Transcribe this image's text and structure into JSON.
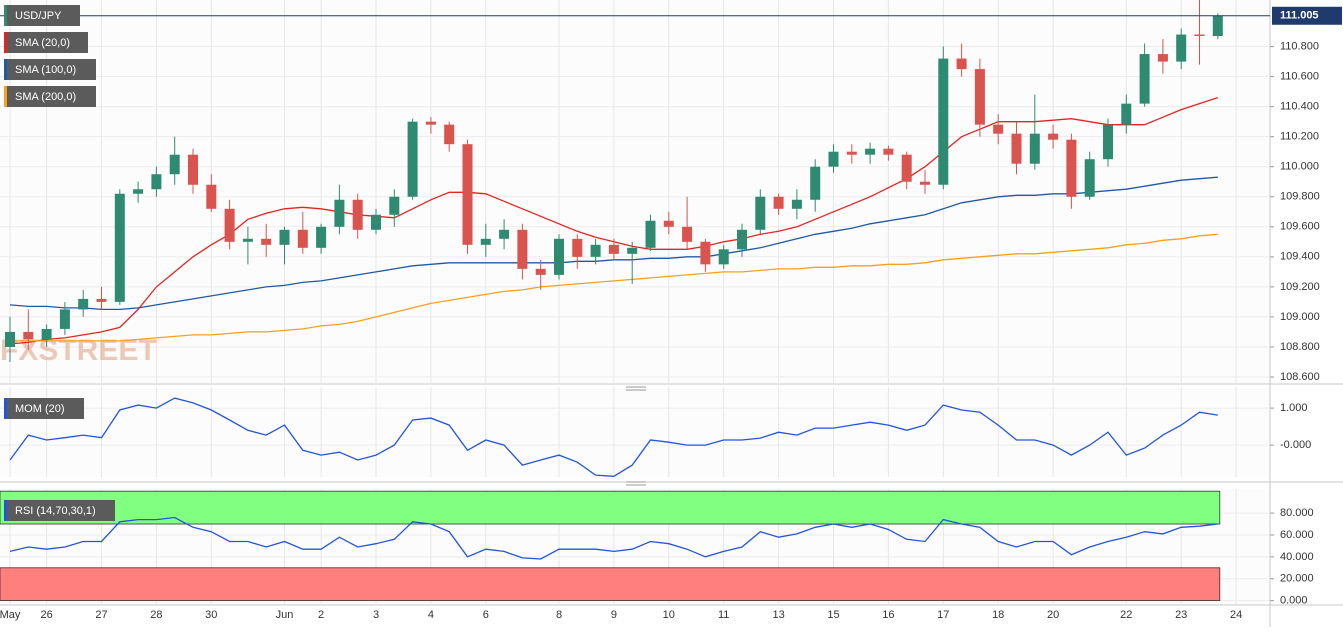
{
  "chart_data": [
    {
      "type": "candlestick",
      "name": "USD/JPY",
      "watermark": "FXSTREET",
      "last_price_label": "111.005",
      "up_color": "#2e8b72",
      "down_color": "#d9534f",
      "last_color": "#1f3b6e",
      "categories": [
        "May",
        null,
        "26",
        null,
        null,
        "27",
        null,
        null,
        "28",
        null,
        null,
        "30",
        null,
        null,
        null,
        "Jun",
        null,
        "2",
        null,
        null,
        "3",
        null,
        null,
        "4",
        null,
        null,
        "6",
        null,
        null,
        null,
        "8",
        null,
        null,
        "9",
        null,
        null,
        "10",
        null,
        null,
        "11",
        null,
        null,
        "13",
        null,
        null,
        "15",
        null,
        null,
        "16",
        null,
        null,
        "17",
        null,
        null,
        "18",
        null,
        null,
        "20",
        null,
        null,
        null,
        "22",
        null,
        null,
        "23",
        null,
        null,
        "24"
      ],
      "open": [
        108.8,
        108.9,
        108.85,
        108.92,
        109.05,
        109.12,
        109.1,
        109.82,
        109.85,
        109.95,
        110.08,
        109.88,
        109.72,
        109.5,
        109.52,
        109.48,
        109.58,
        109.46,
        109.6,
        109.78,
        109.58,
        109.68,
        109.8,
        110.3,
        110.28,
        110.15,
        109.48,
        109.52,
        109.58,
        109.32,
        109.28,
        109.52,
        109.4,
        109.48,
        109.42,
        109.46,
        109.64,
        109.6,
        109.5,
        109.35,
        109.45,
        109.58,
        109.8,
        109.72,
        109.78,
        110.0,
        110.1,
        110.08,
        110.12,
        110.08,
        109.9,
        109.88,
        110.72,
        110.65,
        110.28,
        110.22,
        110.02,
        110.22,
        110.18,
        109.8,
        110.05,
        110.28,
        110.42,
        110.75,
        110.7,
        110.88,
        110.87,
        null
      ],
      "high": [
        109.0,
        109.05,
        108.95,
        109.1,
        109.18,
        109.2,
        109.85,
        109.9,
        110.0,
        110.2,
        110.12,
        109.95,
        109.78,
        109.6,
        109.62,
        109.6,
        109.7,
        109.62,
        109.88,
        109.82,
        109.72,
        109.85,
        110.32,
        110.33,
        110.3,
        110.18,
        109.62,
        109.65,
        109.62,
        109.38,
        109.55,
        109.55,
        109.52,
        109.52,
        109.5,
        109.68,
        109.7,
        109.8,
        109.52,
        109.48,
        109.62,
        109.85,
        109.82,
        109.85,
        110.05,
        110.15,
        110.15,
        110.16,
        110.14,
        110.1,
        109.98,
        110.8,
        110.82,
        110.72,
        110.35,
        110.3,
        110.48,
        110.28,
        110.22,
        110.1,
        110.32,
        110.48,
        110.82,
        110.85,
        110.92,
        111.12,
        111.02,
        null
      ],
      "low": [
        108.7,
        108.78,
        108.8,
        108.88,
        109.0,
        109.05,
        109.08,
        109.76,
        109.8,
        109.88,
        109.82,
        109.7,
        109.45,
        109.35,
        109.4,
        109.35,
        109.42,
        109.42,
        109.55,
        109.52,
        109.55,
        109.6,
        109.78,
        110.22,
        110.1,
        109.42,
        109.4,
        109.45,
        109.25,
        109.18,
        109.25,
        109.32,
        109.35,
        109.38,
        109.22,
        109.44,
        109.55,
        109.45,
        109.3,
        109.32,
        109.4,
        109.55,
        109.68,
        109.65,
        109.7,
        109.96,
        110.02,
        110.02,
        110.04,
        109.85,
        109.82,
        109.85,
        110.6,
        110.2,
        110.15,
        109.95,
        109.98,
        110.12,
        109.72,
        109.78,
        110.0,
        110.22,
        110.4,
        110.62,
        110.65,
        110.68,
        110.85,
        null
      ],
      "close": [
        108.9,
        108.85,
        108.92,
        109.05,
        109.12,
        109.1,
        109.82,
        109.85,
        109.95,
        110.08,
        109.88,
        109.72,
        109.5,
        109.52,
        109.48,
        109.58,
        109.46,
        109.6,
        109.78,
        109.58,
        109.68,
        109.8,
        110.3,
        110.28,
        110.15,
        109.48,
        109.52,
        109.58,
        109.32,
        109.28,
        109.52,
        109.4,
        109.48,
        109.42,
        109.46,
        109.64,
        109.6,
        109.5,
        109.35,
        109.45,
        109.58,
        109.8,
        109.72,
        109.78,
        110.0,
        110.1,
        110.08,
        110.12,
        110.08,
        109.9,
        109.88,
        110.72,
        110.65,
        110.28,
        110.22,
        110.02,
        110.22,
        110.18,
        109.8,
        110.05,
        110.28,
        110.42,
        110.75,
        110.7,
        110.88,
        110.87,
        111.005,
        null
      ],
      "series": [
        {
          "name": "SMA (20,0)",
          "color": "#e8221e",
          "values": [
            108.82,
            108.83,
            108.85,
            108.86,
            108.88,
            108.9,
            108.93,
            109.05,
            109.2,
            109.3,
            109.4,
            109.48,
            109.55,
            109.65,
            109.69,
            109.72,
            109.73,
            109.72,
            109.7,
            109.68,
            109.67,
            109.66,
            109.72,
            109.78,
            109.83,
            109.83,
            109.82,
            109.77,
            109.72,
            109.67,
            109.62,
            109.57,
            109.53,
            109.5,
            109.47,
            109.45,
            109.45,
            109.45,
            109.47,
            109.5,
            109.52,
            109.55,
            109.57,
            109.6,
            109.65,
            109.7,
            109.75,
            109.8,
            109.86,
            109.92,
            110.0,
            110.1,
            110.2,
            110.25,
            110.3,
            110.3,
            110.3,
            110.31,
            110.32,
            110.3,
            110.28,
            110.28,
            110.28,
            110.33,
            110.38,
            110.42,
            110.46,
            null
          ]
        },
        {
          "name": "SMA (100,0)",
          "color": "#1e5aa8",
          "values": [
            109.08,
            109.07,
            109.07,
            109.06,
            109.06,
            109.05,
            109.05,
            109.06,
            109.08,
            109.1,
            109.12,
            109.14,
            109.16,
            109.18,
            109.2,
            109.21,
            109.23,
            109.24,
            109.26,
            109.28,
            109.3,
            109.32,
            109.34,
            109.35,
            109.36,
            109.36,
            109.36,
            109.36,
            109.36,
            109.36,
            109.36,
            109.37,
            109.37,
            109.38,
            109.38,
            109.39,
            109.39,
            109.4,
            109.4,
            109.42,
            109.44,
            109.46,
            109.49,
            109.52,
            109.55,
            109.57,
            109.59,
            109.62,
            109.64,
            109.66,
            109.68,
            109.72,
            109.76,
            109.78,
            109.8,
            109.81,
            109.81,
            109.82,
            109.82,
            109.83,
            109.84,
            109.85,
            109.87,
            109.89,
            109.91,
            109.92,
            109.93,
            null
          ]
        },
        {
          "name": "SMA (200,0)",
          "color": "#f5a11c",
          "values": [
            108.84,
            108.84,
            108.84,
            108.84,
            108.84,
            108.84,
            108.84,
            108.85,
            108.86,
            108.87,
            108.88,
            108.88,
            108.89,
            108.9,
            108.9,
            108.91,
            108.92,
            108.94,
            108.95,
            108.97,
            109.0,
            109.03,
            109.06,
            109.09,
            109.11,
            109.13,
            109.15,
            109.17,
            109.18,
            109.2,
            109.21,
            109.22,
            109.23,
            109.24,
            109.25,
            109.26,
            109.27,
            109.28,
            109.29,
            109.3,
            109.3,
            109.31,
            109.32,
            109.32,
            109.33,
            109.33,
            109.34,
            109.34,
            109.35,
            109.35,
            109.36,
            109.38,
            109.39,
            109.4,
            109.41,
            109.42,
            109.42,
            109.43,
            109.44,
            109.45,
            109.46,
            109.48,
            109.49,
            109.51,
            109.52,
            109.54,
            109.55,
            null
          ]
        }
      ],
      "ylim": [
        108.56,
        111.11
      ],
      "yticks": [
        {
          "value": 108.6,
          "label": "108.600"
        },
        {
          "value": 108.8,
          "label": "108.800"
        },
        {
          "value": 109.0,
          "label": "109.000"
        },
        {
          "value": 109.2,
          "label": "109.200"
        },
        {
          "value": 109.4,
          "label": "109.400"
        },
        {
          "value": 109.6,
          "label": "109.600"
        },
        {
          "value": 109.8,
          "label": "109.800"
        },
        {
          "value": 110.0,
          "label": "110.000"
        },
        {
          "value": 110.2,
          "label": "110.200"
        },
        {
          "value": 110.4,
          "label": "110.400"
        },
        {
          "value": 110.6,
          "label": "110.600"
        },
        {
          "value": 110.8,
          "label": "110.800"
        }
      ],
      "grid": true
    },
    {
      "type": "line",
      "series": [
        {
          "name": "MOM (20)",
          "color": "#2255dd",
          "values": [
            -0.4,
            0.27,
            0.14,
            0.2,
            0.27,
            0.2,
            0.95,
            1.08,
            1.0,
            1.27,
            1.14,
            0.95,
            0.68,
            0.4,
            0.27,
            0.54,
            -0.14,
            -0.27,
            -0.19,
            -0.4,
            -0.27,
            0,
            0.68,
            0.73,
            0.54,
            -0.14,
            0.14,
            0,
            -0.54,
            -0.4,
            -0.27,
            -0.46,
            -0.81,
            -0.84,
            -0.54,
            0.14,
            0.08,
            0,
            0,
            0.14,
            0.14,
            0.19,
            0.35,
            0.27,
            0.46,
            0.46,
            0.54,
            0.62,
            0.54,
            0.4,
            0.54,
            1.08,
            0.95,
            0.89,
            0.54,
            0.14,
            0.14,
            0,
            -0.27,
            0,
            0.35,
            -0.27,
            -0.08,
            0.27,
            0.54,
            0.89,
            0.81,
            null
          ]
        }
      ],
      "ylim": [
        -0.86,
        1.57
      ],
      "yticks": [
        {
          "value": 1,
          "label": "1.000"
        },
        {
          "value": 0,
          "label": "-0.000"
        }
      ],
      "grid": true
    },
    {
      "type": "line",
      "series": [
        {
          "name": "RSI (14,70,30,1)",
          "color": "#2255dd",
          "values": [
            45,
            49,
            47,
            49,
            54,
            54,
            72,
            74,
            74,
            76,
            67,
            63,
            54,
            54,
            49,
            54,
            47,
            47,
            58,
            49,
            52,
            56,
            72,
            70,
            63,
            40,
            47,
            45,
            39,
            38,
            47,
            47,
            47,
            45,
            47,
            54,
            52,
            47,
            40,
            45,
            49,
            63,
            58,
            61,
            67,
            70,
            67,
            70,
            65,
            56,
            54,
            74,
            70,
            67,
            54,
            49,
            54,
            54,
            42,
            49,
            54,
            58,
            63,
            61,
            67,
            68,
            70,
            null
          ]
        }
      ],
      "bands": [
        {
          "from": 70,
          "to": 100,
          "color": "#80ff80"
        },
        {
          "from": 0,
          "to": 30,
          "color": "#ff7f7f"
        }
      ],
      "ylim": [
        -4,
        102
      ],
      "yticks": [
        {
          "value": 0,
          "label": "0.000"
        },
        {
          "value": 20,
          "label": "20.000"
        },
        {
          "value": 40,
          "label": "40.000"
        },
        {
          "value": 60,
          "label": "60.000"
        },
        {
          "value": 80,
          "label": "80.000"
        }
      ],
      "grid": true
    }
  ]
}
